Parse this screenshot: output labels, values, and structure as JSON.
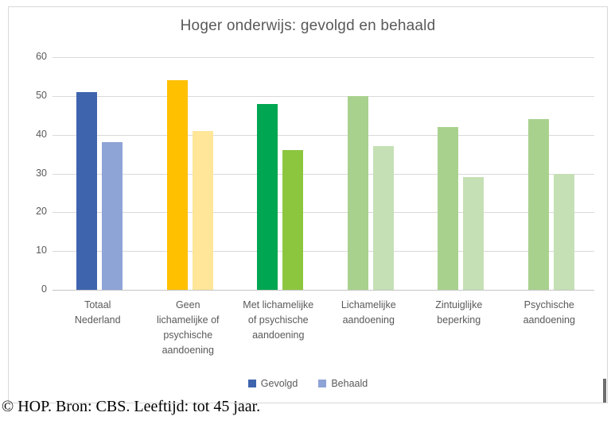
{
  "chart_data": {
    "type": "bar",
    "title": "Hoger onderwijs: gevolgd en behaald",
    "categories": [
      "Totaal\nNederland",
      "Geen\nlichamelijke of\npsychische\naandoening",
      "Met lichamelijke\nof psychische\naandoening",
      "Lichamelijke\naandoening",
      "Zintuiglijke\nbeperking",
      "Psychische\naandoening"
    ],
    "series": [
      {
        "name": "Gevolgd",
        "values": [
          51,
          54,
          48,
          50,
          42,
          44
        ]
      },
      {
        "name": "Behaald",
        "values": [
          38,
          41,
          36,
          37,
          29,
          30
        ]
      }
    ],
    "bar_colors": [
      [
        "#3E64AE",
        "#8EA3D6"
      ],
      [
        "#FFC000",
        "#FFE699"
      ],
      [
        "#00A651",
        "#8CC63F"
      ],
      [
        "#A9D18E",
        "#C5E0B4"
      ],
      [
        "#A9D18E",
        "#C5E0B4"
      ],
      [
        "#A9D18E",
        "#C5E0B4"
      ]
    ],
    "ylim": [
      0,
      60
    ],
    "yticks": [
      0,
      10,
      20,
      30,
      40,
      50,
      60
    ],
    "grid": true,
    "legend_position": "bottom",
    "legend": [
      {
        "label": "Gevolgd",
        "color": "#3E64AE"
      },
      {
        "label": "Behaald",
        "color": "#8EA3D6"
      }
    ],
    "title_color": "#595959",
    "axis_label_color": "#595959",
    "gridline_color": "#D9D9D9"
  },
  "caption": "© HOP. Bron: CBS. Leeftijd: tot 45 jaar."
}
